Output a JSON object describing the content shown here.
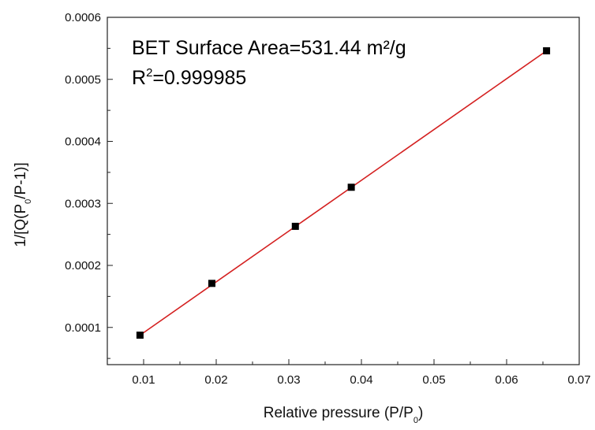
{
  "chart_data": {
    "type": "scatter",
    "title": "",
    "xlabel": {
      "main": "Relative pressure (P/P",
      "sub": "0",
      "end": ")"
    },
    "ylabel": {
      "main": "1/[Q(P",
      "sub": "0",
      "end": "/P-1)]"
    },
    "xlim": [
      0.005,
      0.07
    ],
    "ylim": [
      4e-05,
      0.0006
    ],
    "x_ticks": [
      0.01,
      0.02,
      0.03,
      0.04,
      0.05,
      0.06,
      0.07
    ],
    "x_tick_labels": [
      "0.01",
      "0.02",
      "0.03",
      "0.04",
      "0.05",
      "0.06",
      "0.07"
    ],
    "y_ticks": [
      0.0001,
      0.0002,
      0.0003,
      0.0004,
      0.0005,
      0.0006
    ],
    "y_tick_labels": [
      "0.0001",
      "0.0002",
      "0.0003",
      "0.0004",
      "0.0005",
      "0.0006"
    ],
    "grid": false,
    "series": [
      {
        "points": [
          {
            "x": 0.0095,
            "y": 8.75e-05
          },
          {
            "x": 0.0194,
            "y": 0.000171
          },
          {
            "x": 0.0309,
            "y": 0.000263
          },
          {
            "x": 0.0386,
            "y": 0.000326
          },
          {
            "x": 0.0655,
            "y": 0.000546
          }
        ],
        "marker_color": "#000000"
      }
    ],
    "fit_line": {
      "x": [
        0.0095,
        0.0655
      ],
      "y": [
        8.75e-05,
        0.000546
      ],
      "color": "#d42020"
    },
    "annotations": [
      {
        "text": "BET Surface Area=531.44 m²/g"
      },
      {
        "text_main": "R",
        "text_sup": "2",
        "text_end": "=0.999985"
      }
    ]
  }
}
